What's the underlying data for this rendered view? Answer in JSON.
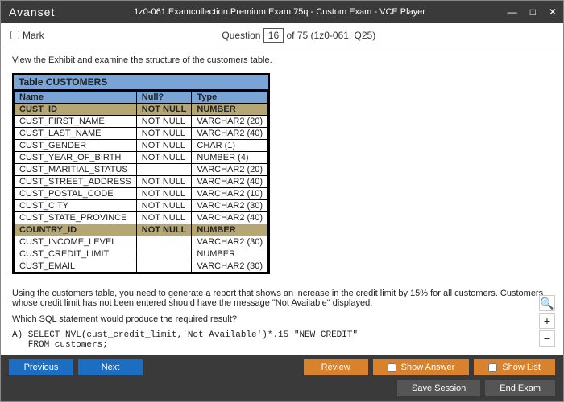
{
  "window": {
    "logo": "Avanset",
    "title": "1z0-061.Examcollection.Premium.Exam.75q - Custom Exam - VCE Player"
  },
  "header": {
    "mark_label": "Mark",
    "question_word": "Question",
    "q_current": "16",
    "q_rest": " of 75 (1z0-061, Q25)"
  },
  "content": {
    "instruction": "View the Exhibit and examine the structure of the customers table.",
    "table_title": "Table CUSTOMERS",
    "columns": [
      "Name",
      "Null?",
      "Type"
    ],
    "rows": [
      {
        "cells": [
          "CUST_ID",
          "NOT NULL",
          "NUMBER"
        ],
        "hl": true
      },
      {
        "cells": [
          "CUST_FIRST_NAME",
          "NOT NULL",
          "VARCHAR2 (20)"
        ],
        "hl": false
      },
      {
        "cells": [
          "CUST_LAST_NAME",
          "NOT NULL",
          "VARCHAR2 (40)"
        ],
        "hl": false
      },
      {
        "cells": [
          "CUST_GENDER",
          "NOT NULL",
          "CHAR (1)"
        ],
        "hl": false
      },
      {
        "cells": [
          "CUST_YEAR_OF_BIRTH",
          "NOT NULL",
          "NUMBER (4)"
        ],
        "hl": false
      },
      {
        "cells": [
          "CUST_MARITIAL_STATUS",
          "",
          "VARCHAR2 (20)"
        ],
        "hl": false
      },
      {
        "cells": [
          "CUST_STREET_ADDRESS",
          "NOT NULL",
          "VARCHAR2 (40)"
        ],
        "hl": false
      },
      {
        "cells": [
          "CUST_POSTAL_CODE",
          "NOT NULL",
          "VARCHAR2 (10)"
        ],
        "hl": false
      },
      {
        "cells": [
          "CUST_CITY",
          "NOT NULL",
          "VARCHAR2 (30)"
        ],
        "hl": false
      },
      {
        "cells": [
          "CUST_STATE_PROVINCE",
          "NOT NULL",
          "VARCHAR2 (40)"
        ],
        "hl": false
      },
      {
        "cells": [
          "COUNTRY_ID",
          "NOT NULL",
          "NUMBER"
        ],
        "hl": true
      },
      {
        "cells": [
          "CUST_INCOME_LEVEL",
          "",
          "VARCHAR2 (30)"
        ],
        "hl": false
      },
      {
        "cells": [
          "CUST_CREDIT_LIMIT",
          "",
          "NUMBER"
        ],
        "hl": false
      },
      {
        "cells": [
          "CUST_EMAIL",
          "",
          "VARCHAR2 (30)"
        ],
        "hl": false
      }
    ],
    "para1": "Using the customers table, you need to generate a report that shows an increase in the credit limit by 15% for all customers. Customers whose credit limit has not been entered should have the message \"Not Available\" displayed.",
    "para2": "Which SQL statement would produce the required result?",
    "option_a": "A) SELECT NVL(cust_credit_limit,'Not Available')*.15 \"NEW CREDIT\"\n   FROM customers;"
  },
  "footer": {
    "previous": "Previous",
    "next": "Next",
    "review": "Review",
    "show_answer": "Show Answer",
    "show_list": "Show List",
    "save_session": "Save Session",
    "end_exam": "End Exam"
  },
  "colors": {
    "titlebar_bg": "#3a3a3a",
    "table_header_bg": "#7aa4d6",
    "highlight_bg": "#b5a773",
    "btn_blue": "#1b6ec2",
    "btn_orange": "#d9822b",
    "btn_dark": "#555555"
  }
}
